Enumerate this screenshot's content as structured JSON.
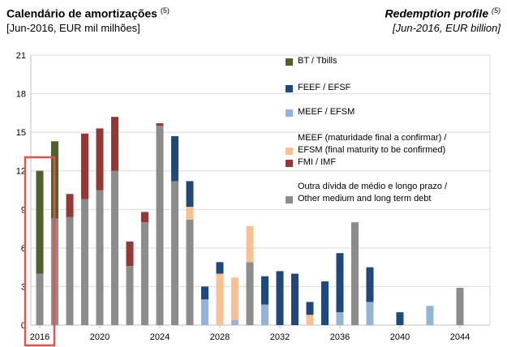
{
  "header": {
    "title_pt": "Calendário de amortizações",
    "title_pt_note": "(5)",
    "subtitle_pt": "[Jun-2016, EUR mil milhões]",
    "title_en": "Redemption profile",
    "title_en_note": "(5)",
    "subtitle_en": "[Jun-2016, EUR billion]"
  },
  "colors": {
    "bt": "#4f6228",
    "feef": "#1f497d",
    "meef": "#95b3d7",
    "meef_tbc": "#fac090",
    "fmi": "#953735",
    "other": "#8c8c8c",
    "highlight": "#e8504a"
  },
  "chart_data": {
    "type": "bar",
    "stacked": true,
    "title": "Calendário de amortizações / Redemption profile",
    "ylabel": "EUR mil milhões / EUR billion",
    "ylim": [
      0,
      21
    ],
    "yticks": [
      "0",
      "3",
      "6",
      "9",
      "12",
      "15",
      "18",
      "21"
    ],
    "x": [
      2016,
      2017,
      2018,
      2019,
      2020,
      2021,
      2022,
      2023,
      2024,
      2025,
      2026,
      2027,
      2028,
      2029,
      2030,
      2031,
      2032,
      2033,
      2034,
      2035,
      2036,
      2037,
      2038,
      2039,
      2040,
      2041,
      2042,
      2043,
      2044
    ],
    "xtick_labels": [
      {
        "year": 2016,
        "label": "2016"
      },
      {
        "year": 2020,
        "label": "2020"
      },
      {
        "year": 2024,
        "label": "2024"
      },
      {
        "year": 2028,
        "label": "2028"
      },
      {
        "year": 2032,
        "label": "2032"
      },
      {
        "year": 2036,
        "label": "2036"
      },
      {
        "year": 2040,
        "label": "2040"
      },
      {
        "year": 2044,
        "label": "2044"
      }
    ],
    "highlight_year": 2016,
    "series": [
      {
        "key": "other",
        "name": "Outra dívida de médio e longo prazo / Other medium and long term debt",
        "values": [
          4.0,
          8.3,
          8.4,
          9.8,
          10.5,
          12.0,
          4.6,
          8.0,
          15.5,
          11.2,
          8.2,
          0,
          0,
          0,
          4.9,
          0,
          0,
          0,
          0,
          0,
          0,
          8.0,
          0,
          0,
          0,
          0,
          0,
          0,
          2.9
        ]
      },
      {
        "key": "meef",
        "name": "MEEF / EFSM",
        "values": [
          0,
          0,
          0,
          0,
          0,
          0,
          0,
          0,
          0,
          0,
          0,
          2.0,
          0,
          0.4,
          0,
          1.6,
          0,
          0,
          0,
          0,
          1.0,
          0,
          1.8,
          0,
          0,
          0,
          1.5,
          0,
          0
        ]
      },
      {
        "key": "meef_tbc",
        "name": "MEEF (maturidade final a confirmar) / EFSM (final maturity to be confirmed)",
        "values": [
          0,
          0,
          0,
          0,
          0,
          0,
          0,
          0,
          0,
          0,
          1.0,
          0,
          4.0,
          3.3,
          2.8,
          0,
          0,
          0,
          0.8,
          0,
          0,
          0,
          0,
          0,
          0,
          0,
          0,
          0,
          0
        ]
      },
      {
        "key": "feef",
        "name": "FEEF / EFSF",
        "values": [
          0,
          0,
          0,
          0,
          0,
          0,
          0,
          0,
          0,
          3.5,
          2.0,
          1.0,
          0.9,
          0,
          0,
          2.2,
          4.2,
          4.0,
          1.0,
          3.4,
          4.6,
          0,
          2.7,
          0,
          1.0,
          0,
          0,
          0,
          0
        ]
      },
      {
        "key": "fmi",
        "name": "FMI / IMF",
        "values": [
          0,
          0,
          1.8,
          5.1,
          4.8,
          4.2,
          1.9,
          0.8,
          0.2,
          0,
          0,
          0,
          0,
          0,
          0,
          0,
          0,
          0,
          0,
          0,
          0,
          0,
          0,
          0,
          0,
          0,
          0,
          0,
          0
        ]
      },
      {
        "key": "bt",
        "name": "BT / Tbills",
        "values": [
          8.0,
          6.0,
          0,
          0,
          0,
          0,
          0,
          0,
          0,
          0,
          0,
          0,
          0,
          0,
          0,
          0,
          0,
          0,
          0,
          0,
          0,
          0,
          0,
          0,
          0,
          0,
          0,
          0,
          0
        ]
      }
    ]
  },
  "legend": [
    {
      "key": "bt",
      "color_key": "bt",
      "lines": [
        "BT / Tbills"
      ]
    },
    {
      "key": "feef",
      "color_key": "feef",
      "lines": [
        "FEEF / EFSF"
      ]
    },
    {
      "key": "meef",
      "color_key": "meef",
      "lines": [
        "MEEF / EFSM"
      ]
    },
    {
      "key": "meef_tbc",
      "color_key": "meef_tbc",
      "lines": [
        "MEEF (maturidade final a confirmar) /",
        "EFSM (final maturity to be confirmed)"
      ]
    },
    {
      "key": "fmi",
      "color_key": "fmi",
      "lines": [
        "FMI / IMF"
      ]
    },
    {
      "key": "other",
      "color_key": "other",
      "lines": [
        "Outra dívida de médio e longo prazo /",
        "Other medium and long term debt"
      ]
    }
  ]
}
